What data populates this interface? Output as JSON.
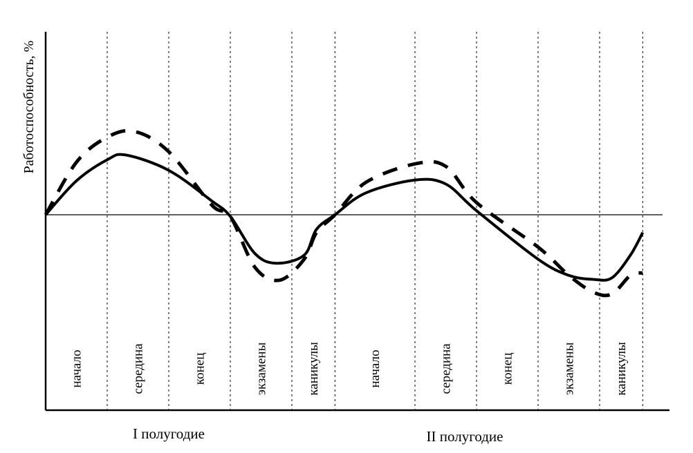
{
  "chart_data": {
    "type": "line",
    "title": "",
    "xlabel": "",
    "ylabel": "Работоспособность, %",
    "ylim": [
      -100,
      100
    ],
    "grid": "vertical-dashed-dividers",
    "legend": "none",
    "phases": [
      {
        "label": "начало",
        "start": 0,
        "end": 1
      },
      {
        "label": "середина",
        "start": 1,
        "end": 2
      },
      {
        "label": "конец",
        "start": 2,
        "end": 3
      },
      {
        "label": "экзамены",
        "start": 3,
        "end": 4
      },
      {
        "label": "каникулы",
        "start": 4,
        "end": 4.7
      },
      {
        "label": "начало",
        "start": 4.7,
        "end": 6
      },
      {
        "label": "середина",
        "start": 6,
        "end": 7
      },
      {
        "label": "конец",
        "start": 7,
        "end": 8
      },
      {
        "label": "экзамены",
        "start": 8,
        "end": 9
      },
      {
        "label": "каникулы",
        "start": 9,
        "end": 9.7
      }
    ],
    "halves": [
      {
        "label": "I полугодие",
        "start": 0,
        "end": 4.7
      },
      {
        "label": "II полугодие",
        "start": 4.7,
        "end": 9.7
      }
    ],
    "series": [
      {
        "name": "solid",
        "style": "solid",
        "color": "#000000",
        "x": [
          0,
          0.5,
          1.0,
          1.3,
          2.0,
          2.7,
          3.0,
          3.4,
          3.75,
          4.2,
          4.4,
          4.7,
          5.2,
          6.0,
          6.5,
          7.0,
          8.0,
          8.5,
          8.9,
          9.2,
          9.5,
          9.7
        ],
        "values": [
          0,
          42,
          68,
          74,
          55,
          17,
          -2,
          -48,
          -60,
          -50,
          -18,
          0,
          27,
          43,
          38,
          5,
          -55,
          -75,
          -80,
          -78,
          -50,
          -22
        ]
      },
      {
        "name": "dashed",
        "style": "dashed",
        "color": "#000000",
        "x": [
          0,
          0.5,
          1.0,
          1.45,
          2.0,
          2.7,
          3.0,
          3.4,
          3.8,
          4.2,
          4.4,
          4.7,
          5.2,
          6.0,
          6.5,
          7.0,
          8.0,
          8.5,
          8.9,
          9.2,
          9.5,
          9.7
        ],
        "values": [
          0,
          65,
          96,
          103,
          78,
          12,
          -2,
          -65,
          -81,
          -55,
          -22,
          0,
          40,
          63,
          60,
          15,
          -40,
          -75,
          -96,
          -98,
          -75,
          -72
        ]
      }
    ],
    "axis": {
      "xmax": 10.0
    }
  }
}
